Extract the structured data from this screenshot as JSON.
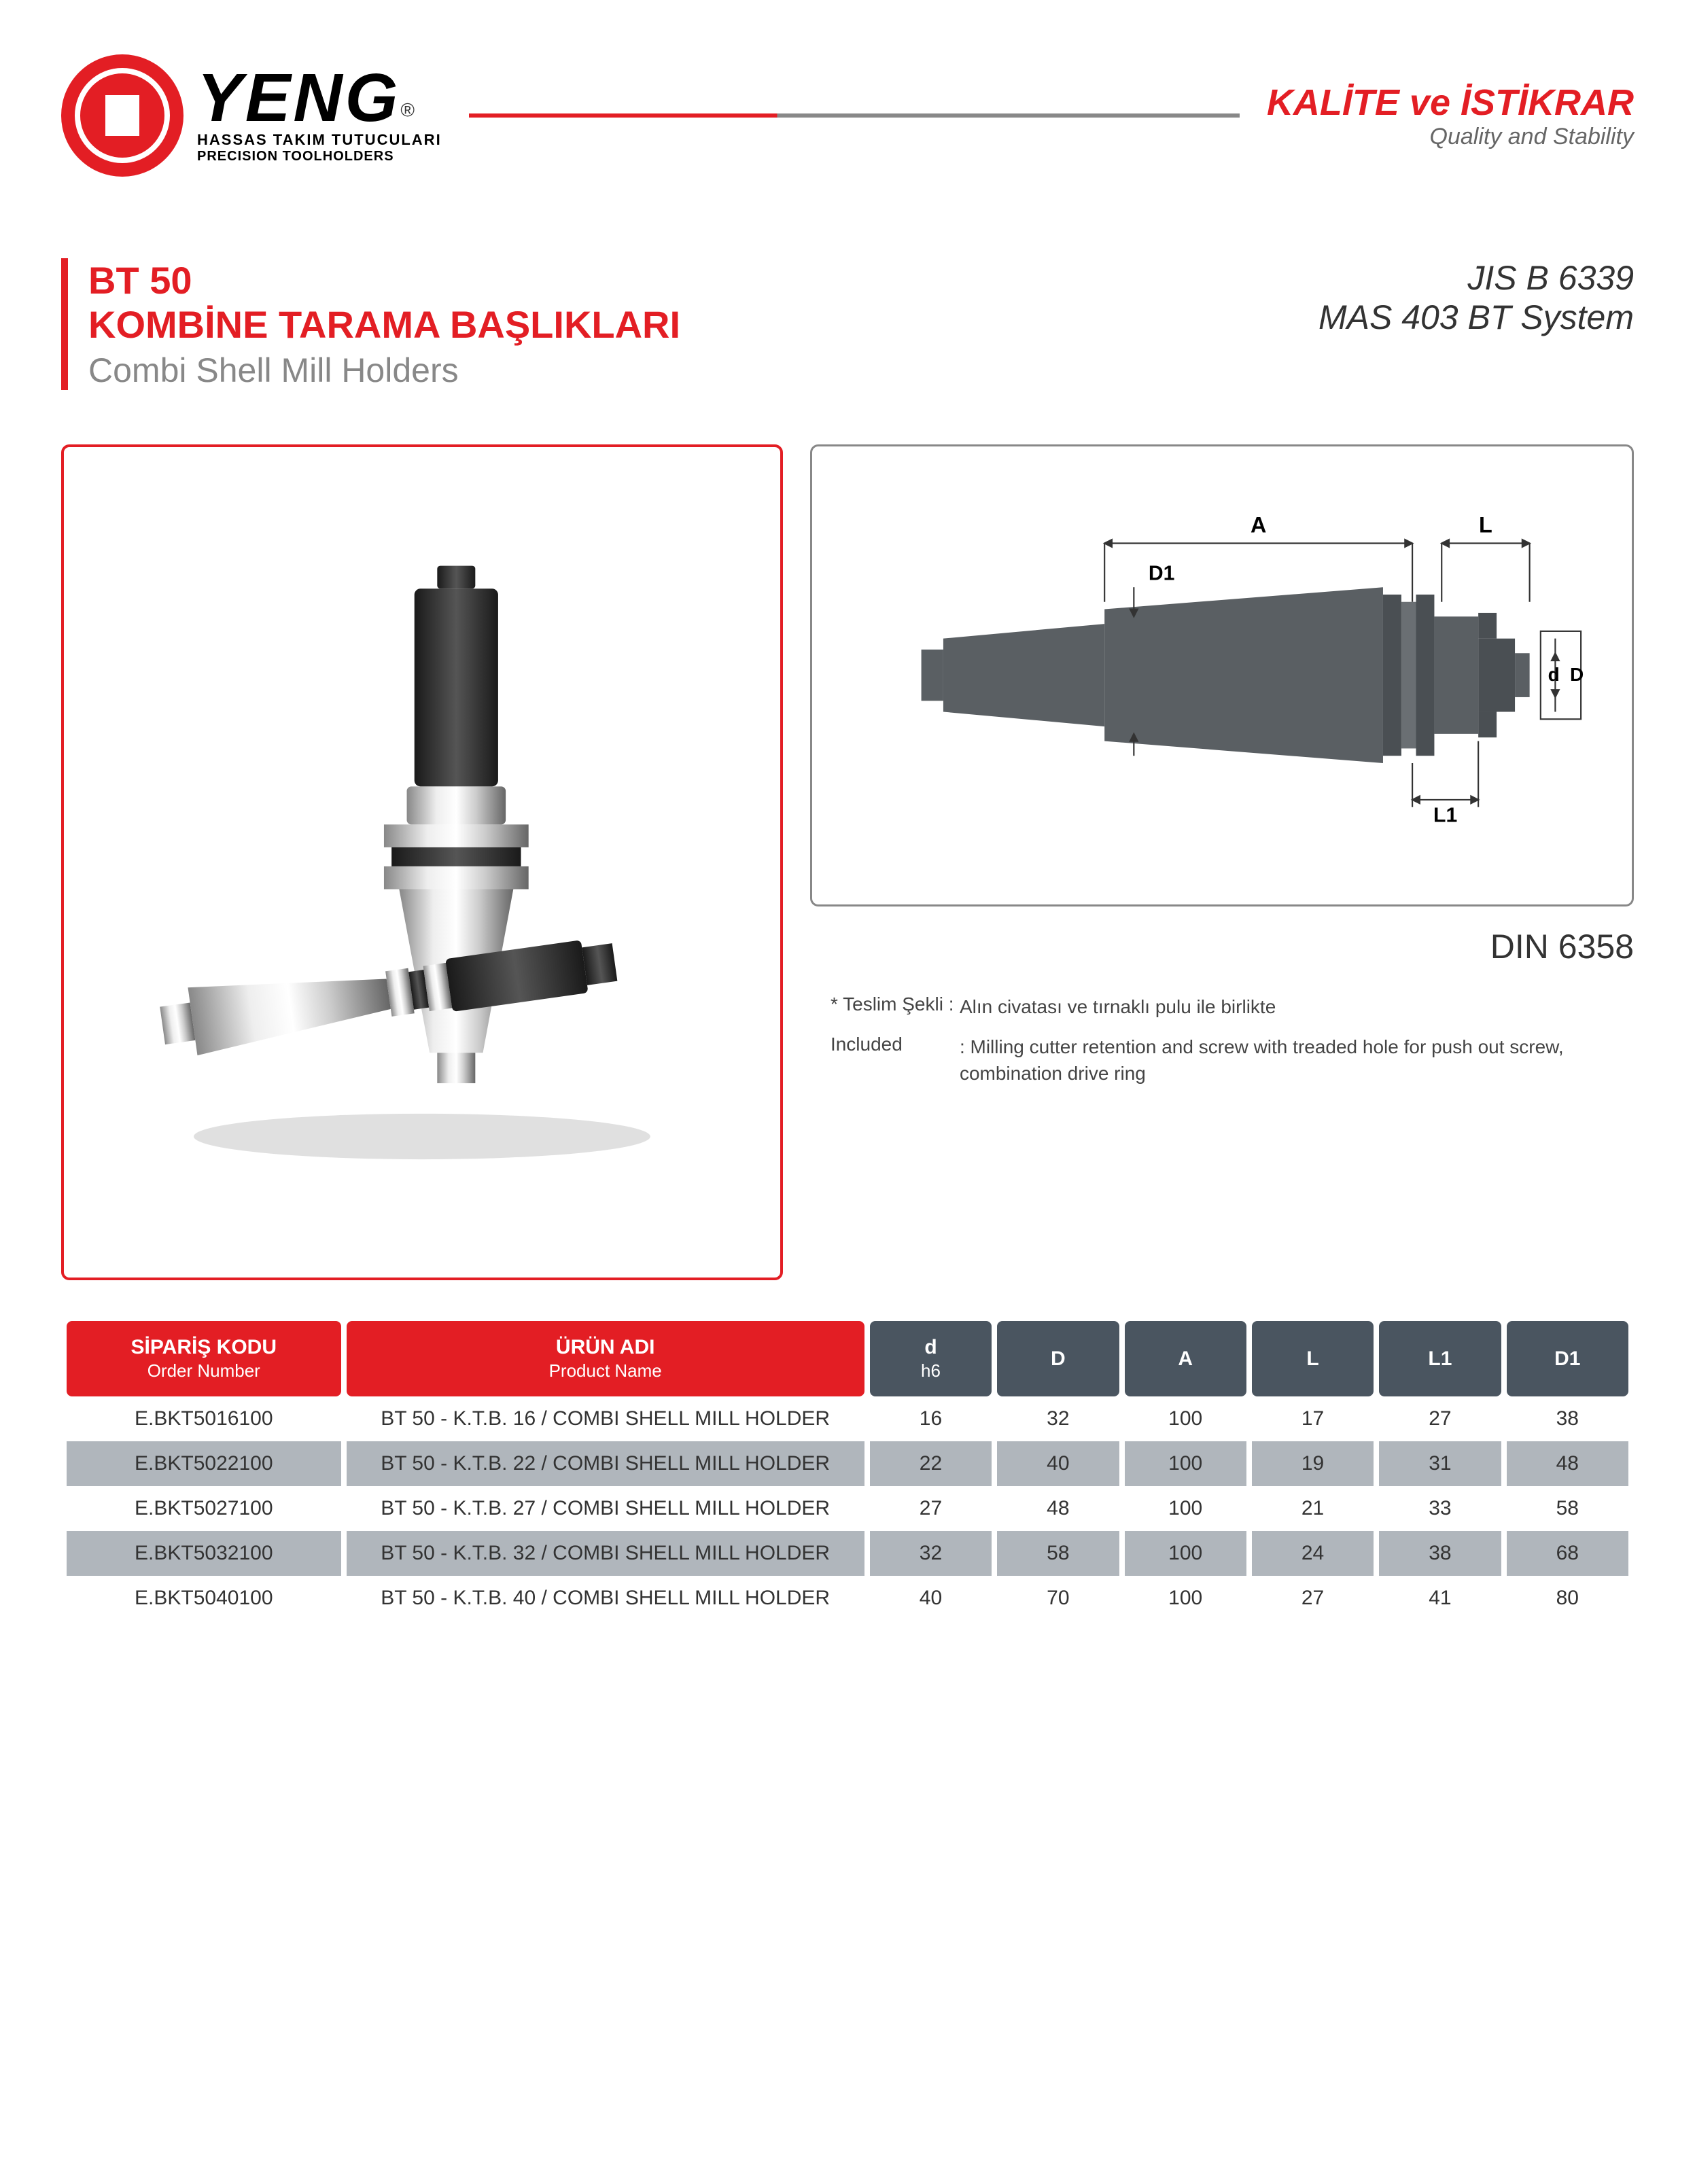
{
  "header": {
    "brand": "YENG",
    "trademark": "®",
    "subtitle1": "HASSAS TAKIM TUTUCULARI",
    "subtitle2": "PRECISION TOOLHOLDERS",
    "tagline_main": "KALİTE ve İSTİKRAR",
    "tagline_sub": "Quality and Stability"
  },
  "title": {
    "code": "BT 50",
    "main": "KOMBİNE TARAMA BAŞLIKLARI",
    "sub": "Combi Shell Mill Holders",
    "spec1": "JIS B 6339",
    "spec2": "MAS 403 BT System"
  },
  "diagram": {
    "labels": {
      "A": "A",
      "L": "L",
      "D1": "D1",
      "d": "d",
      "D": "D",
      "L1": "L1"
    },
    "din": "DIN 6358"
  },
  "notes": {
    "label1": "* Teslim Şekli :",
    "text1": "Alın civatası ve tırnaklı pulu ile birlikte",
    "label2": "Included",
    "text2": ": Milling cutter retention and screw with treaded hole for push out screw, combination drive ring"
  },
  "table": {
    "headers": {
      "code": "SİPARİŞ KODU",
      "code_sub": "Order Number",
      "name": "ÜRÜN ADI",
      "name_sub": "Product Name",
      "d": "d",
      "d_sub": "h6",
      "D": "D",
      "A": "A",
      "L": "L",
      "L1": "L1",
      "D1": "D1"
    },
    "rows": [
      {
        "code": "E.BKT5016100",
        "name": "BT 50 - K.T.B. 16 / COMBI SHELL MILL HOLDER",
        "d": "16",
        "D": "32",
        "A": "100",
        "L": "17",
        "L1": "27",
        "D1": "38"
      },
      {
        "code": "E.BKT5022100",
        "name": "BT 50 - K.T.B. 22 / COMBI SHELL MILL HOLDER",
        "d": "22",
        "D": "40",
        "A": "100",
        "L": "19",
        "L1": "31",
        "D1": "48"
      },
      {
        "code": "E.BKT5027100",
        "name": "BT 50 - K.T.B. 27 / COMBI SHELL MILL HOLDER",
        "d": "27",
        "D": "48",
        "A": "100",
        "L": "21",
        "L1": "33",
        "D1": "58"
      },
      {
        "code": "E.BKT5032100",
        "name": "BT 50 - K.T.B. 32 / COMBI SHELL MILL HOLDER",
        "d": "32",
        "D": "58",
        "A": "100",
        "L": "24",
        "L1": "38",
        "D1": "68"
      },
      {
        "code": "E.BKT5040100",
        "name": "BT 50 - K.T.B. 40 / COMBI SHELL MILL HOLDER",
        "d": "40",
        "D": "70",
        "A": "100",
        "L": "27",
        "L1": "41",
        "D1": "80"
      }
    ],
    "colors": {
      "red": "#e31e24",
      "dark": "#4a5560",
      "odd_row": "#b0b6bc",
      "even_row": "#ffffff"
    }
  }
}
